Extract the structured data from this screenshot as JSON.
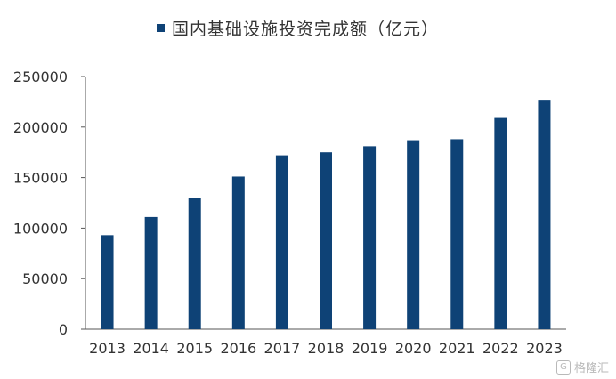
{
  "chart_data": {
    "type": "bar",
    "title": "国内基础设施投资完成额（亿元）",
    "categories": [
      "2013",
      "2014",
      "2015",
      "2016",
      "2017",
      "2018",
      "2019",
      "2020",
      "2021",
      "2022",
      "2023"
    ],
    "series": [
      {
        "name": "国内基础设施投资完成额（亿元）",
        "values": [
          93000,
          111000,
          130000,
          151000,
          172000,
          175000,
          181000,
          187000,
          188000,
          209000,
          227000
        ]
      }
    ],
    "ylim": [
      0,
      250000
    ],
    "yticks": [
      0,
      50000,
      100000,
      150000,
      200000,
      250000
    ],
    "xlabel": "",
    "ylabel": "",
    "grid": false,
    "legend": "top",
    "bar_color": "#0e4276"
  },
  "watermark": {
    "icon": "G",
    "text": "格隆汇"
  }
}
